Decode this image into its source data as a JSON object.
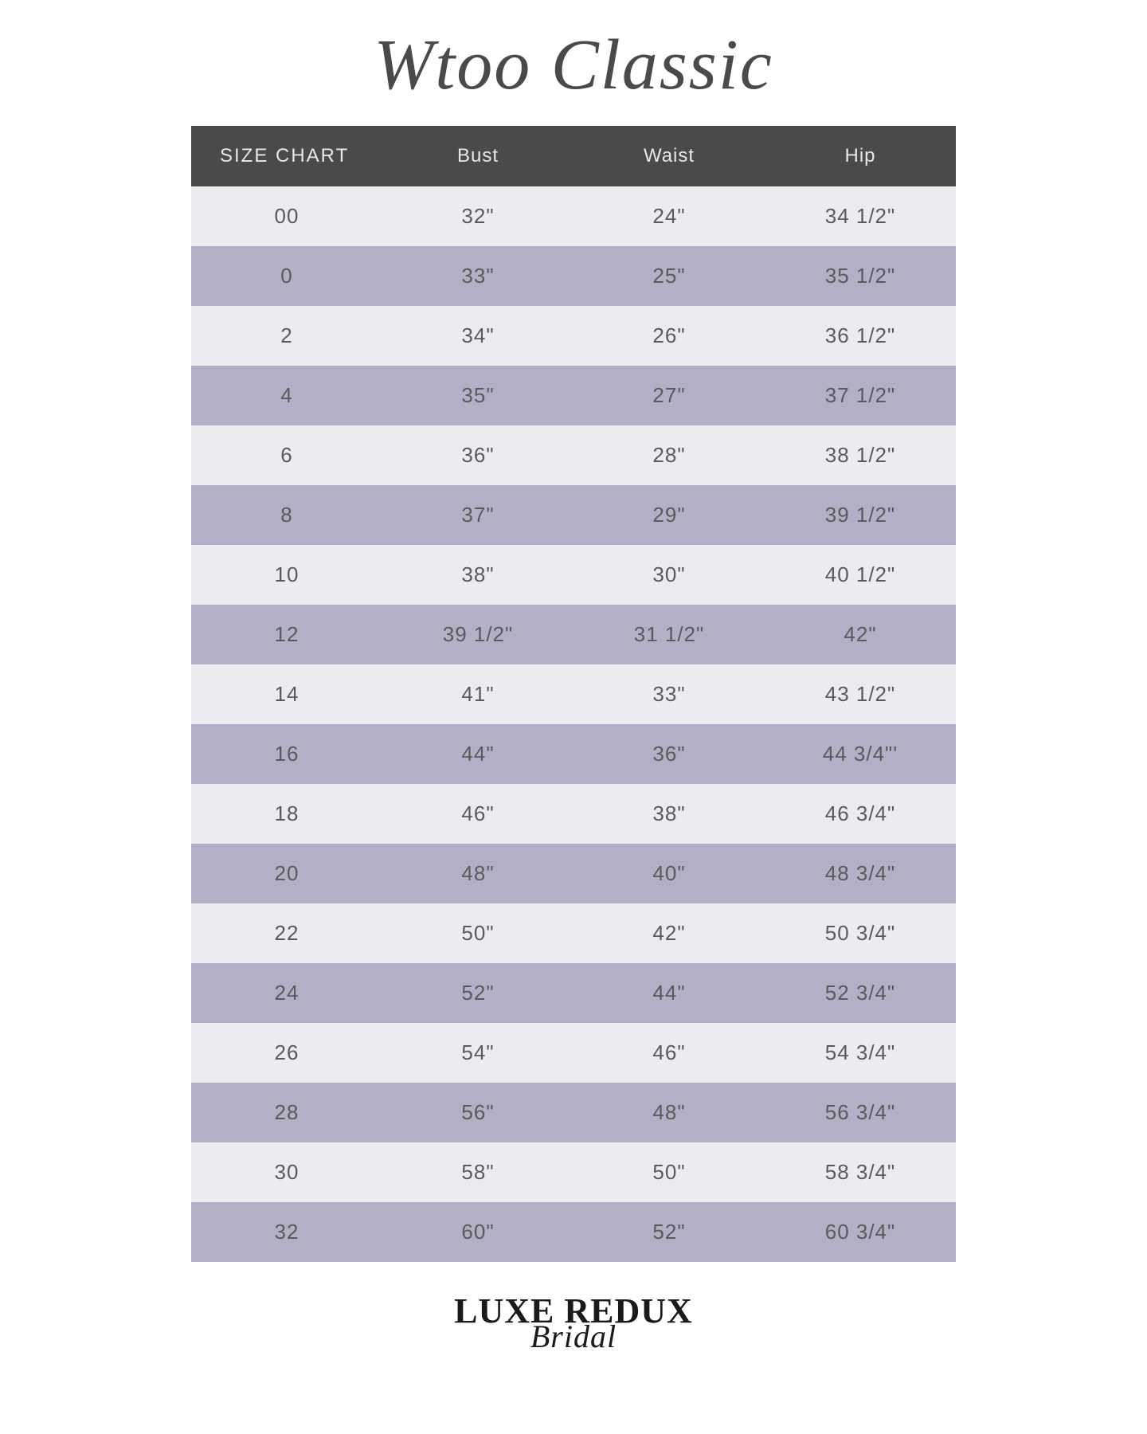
{
  "title": "Wtoo Classic",
  "table": {
    "type": "table",
    "background_color": "#ffffff",
    "header": {
      "bg_color": "#4a4a4a",
      "text_color": "#e8e8e8",
      "fontsize": 24,
      "cells": [
        "SIZE CHART",
        "Bust",
        "Waist",
        "Hip"
      ]
    },
    "row_colors": {
      "light": "#ecebf0",
      "dark": "#b2b0c6"
    },
    "cell_text_color": "#5a5a5a",
    "cell_fontsize": 26,
    "columns": [
      "size",
      "bust",
      "waist",
      "hip"
    ],
    "column_widths_pct": [
      25,
      25,
      25,
      25
    ],
    "rows": [
      {
        "size": "00",
        "bust": "32\"",
        "waist": "24\"",
        "hip": "34 1/2\""
      },
      {
        "size": "0",
        "bust": "33\"",
        "waist": "25\"",
        "hip": "35 1/2\""
      },
      {
        "size": "2",
        "bust": "34\"",
        "waist": "26\"",
        "hip": "36 1/2\""
      },
      {
        "size": "4",
        "bust": "35\"",
        "waist": "27\"",
        "hip": "37 1/2\""
      },
      {
        "size": "6",
        "bust": "36\"",
        "waist": "28\"",
        "hip": "38 1/2\""
      },
      {
        "size": "8",
        "bust": "37\"",
        "waist": "29\"",
        "hip": "39 1/2\""
      },
      {
        "size": "10",
        "bust": "38\"",
        "waist": "30\"",
        "hip": "40 1/2\""
      },
      {
        "size": "12",
        "bust": "39 1/2\"",
        "waist": "31 1/2\"",
        "hip": "42\""
      },
      {
        "size": "14",
        "bust": "41\"",
        "waist": "33\"",
        "hip": "43 1/2\""
      },
      {
        "size": "16",
        "bust": "44\"",
        "waist": "36\"",
        "hip": "44 3/4\"'"
      },
      {
        "size": "18",
        "bust": "46\"",
        "waist": "38\"",
        "hip": "46 3/4\""
      },
      {
        "size": "20",
        "bust": "48\"",
        "waist": "40\"",
        "hip": "48 3/4\""
      },
      {
        "size": "22",
        "bust": "50\"",
        "waist": "42\"",
        "hip": "50 3/4\""
      },
      {
        "size": "24",
        "bust": "52\"",
        "waist": "44\"",
        "hip": "52 3/4\""
      },
      {
        "size": "26",
        "bust": "54\"",
        "waist": "46\"",
        "hip": "54 3/4\""
      },
      {
        "size": "28",
        "bust": "56\"",
        "waist": "48\"",
        "hip": "56 3/4\""
      },
      {
        "size": "30",
        "bust": "58\"",
        "waist": "50\"",
        "hip": "58 3/4\""
      },
      {
        "size": "32",
        "bust": "60\"",
        "waist": "52\"",
        "hip": "60 3/4\""
      }
    ]
  },
  "footer": {
    "main": "LUXE REDUX",
    "sub": "Bridal",
    "text_color": "#1a1a1a"
  }
}
